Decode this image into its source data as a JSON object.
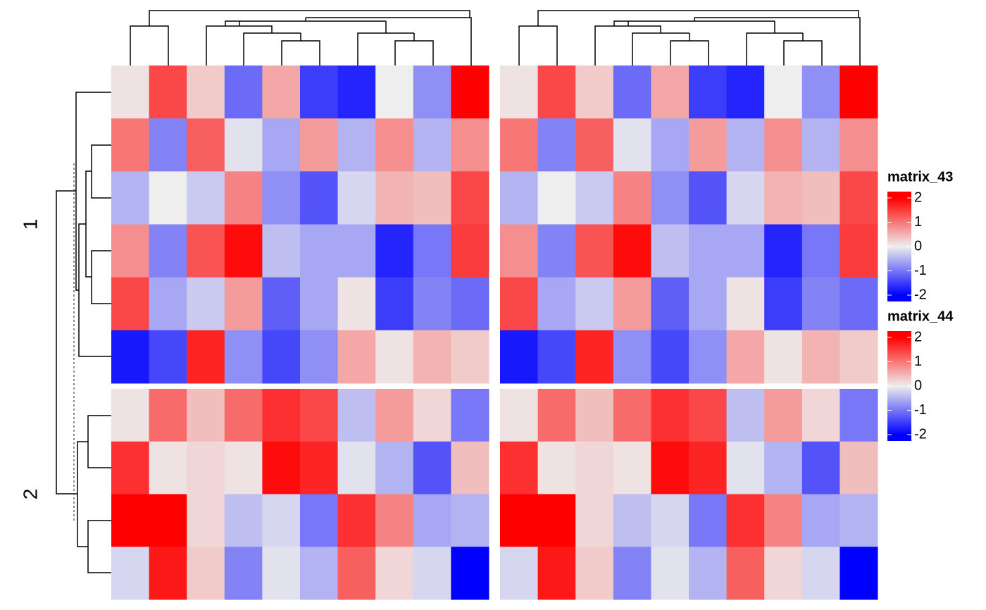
{
  "chart_data": [
    {
      "type": "heatmap",
      "name": "matrix_43",
      "colors": [
        "#0000ff",
        "#eeeeee",
        "#ff0000"
      ],
      "zlim": [
        -2,
        2
      ],
      "zticks": [
        -2,
        -1,
        0,
        1,
        2
      ],
      "row_slices": [
        {
          "label": "1",
          "values": [
            [
              0.1,
              1.4,
              0.3,
              -1.1,
              0.6,
              -1.5,
              -1.7,
              0,
              -0.8,
              2.1
            ],
            [
              1.0,
              -0.9,
              1.2,
              -0.1,
              -0.6,
              0.7,
              -0.5,
              0.8,
              -0.5,
              0.8
            ],
            [
              -0.5,
              0,
              -0.3,
              0.9,
              -0.8,
              -1.3,
              -0.2,
              0.5,
              0.4,
              1.4
            ],
            [
              0.8,
              -0.9,
              1.3,
              1.9,
              -0.4,
              -0.6,
              -0.6,
              -1.7,
              -1.0,
              1.5
            ],
            [
              1.4,
              -0.6,
              -0.3,
              0.7,
              -1.2,
              -0.6,
              0.1,
              -1.5,
              -0.9,
              -1.1
            ],
            [
              -1.8,
              -1.4,
              1.7,
              -0.8,
              -1.4,
              -0.8,
              0.6,
              0.1,
              0.5,
              0.3
            ]
          ]
        },
        {
          "label": "2",
          "values": [
            [
              0.1,
              1.1,
              0.4,
              1.1,
              1.6,
              1.4,
              -0.4,
              0.7,
              0.2,
              -1.0
            ],
            [
              1.6,
              0.1,
              0.2,
              0.1,
              1.9,
              1.7,
              -0.1,
              -0.5,
              -1.3,
              0.4
            ],
            [
              2.1,
              2.0,
              0.2,
              -0.4,
              -0.2,
              -1.0,
              1.6,
              0.9,
              -0.6,
              -0.5
            ],
            [
              -0.2,
              1.8,
              0.3,
              -0.9,
              -0.1,
              -0.5,
              1.2,
              0.2,
              -0.2,
              -2.2
            ]
          ]
        }
      ]
    },
    {
      "type": "heatmap",
      "name": "matrix_44",
      "colors": [
        "#0000ff",
        "#eeeeee",
        "#ff0000"
      ],
      "zlim": [
        -2,
        2
      ],
      "zticks": [
        -2,
        -1,
        0,
        1,
        2
      ],
      "row_slices": [
        {
          "values": [
            [
              0.1,
              1.4,
              0.3,
              -1.1,
              0.6,
              -1.5,
              -1.7,
              0,
              -0.8,
              2.1
            ],
            [
              1.0,
              -0.9,
              1.2,
              -0.1,
              -0.6,
              0.7,
              -0.5,
              0.8,
              -0.5,
              0.8
            ],
            [
              -0.5,
              0,
              -0.3,
              0.9,
              -0.8,
              -1.3,
              -0.2,
              0.5,
              0.4,
              1.4
            ],
            [
              0.8,
              -0.9,
              1.3,
              1.9,
              -0.4,
              -0.6,
              -0.6,
              -1.7,
              -1.0,
              1.5
            ],
            [
              1.4,
              -0.6,
              -0.3,
              0.7,
              -1.2,
              -0.6,
              0.1,
              -1.5,
              -0.9,
              -1.1
            ],
            [
              -1.8,
              -1.4,
              1.7,
              -0.8,
              -1.4,
              -0.8,
              0.6,
              0.1,
              0.5,
              0.3
            ]
          ]
        },
        {
          "values": [
            [
              0.1,
              1.1,
              0.4,
              1.1,
              1.6,
              1.4,
              -0.4,
              0.7,
              0.2,
              -1.0
            ],
            [
              1.6,
              0.1,
              0.2,
              0.1,
              1.9,
              1.7,
              -0.1,
              -0.5,
              -1.3,
              0.4
            ],
            [
              2.1,
              2.0,
              0.2,
              -0.4,
              -0.2,
              -1.0,
              1.6,
              0.9,
              -0.6,
              -0.5
            ],
            [
              -0.2,
              1.8,
              0.3,
              -0.9,
              -0.1,
              -0.5,
              1.2,
              0.2,
              -0.2,
              -2.2
            ]
          ]
        }
      ]
    }
  ]
}
